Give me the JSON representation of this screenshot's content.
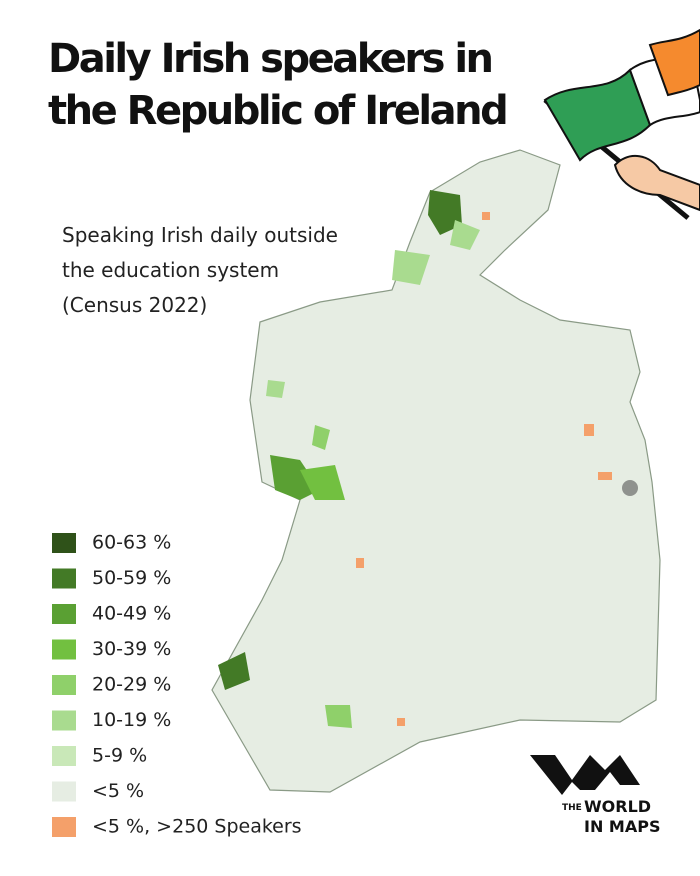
{
  "title": [
    "Daily Irish speakers in",
    "the Republic of Ireland"
  ],
  "subtitle": [
    "Speaking Irish daily outside",
    "the education system",
    "(Census 2022)"
  ],
  "legend": [
    {
      "label": "60-63 %",
      "color": "#2f5219"
    },
    {
      "label": "50-59 %",
      "color": "#437a26"
    },
    {
      "label": "40-49 %",
      "color": "#5aa033"
    },
    {
      "label": "30-39 %",
      "color": "#72c040"
    },
    {
      "label": "20-29 %",
      "color": "#8fd06a"
    },
    {
      "label": "10-19 %",
      "color": "#a9db8f"
    },
    {
      "label": "5-9 %",
      "color": "#c9e8b8"
    },
    {
      "label": "<5 %",
      "color": "#e6ede3"
    },
    {
      "label": "<5 %,  >250 Speakers",
      "color": "#f4a06a"
    }
  ],
  "logo": [
    "THE",
    "WORLD",
    "IN MAPS"
  ]
}
